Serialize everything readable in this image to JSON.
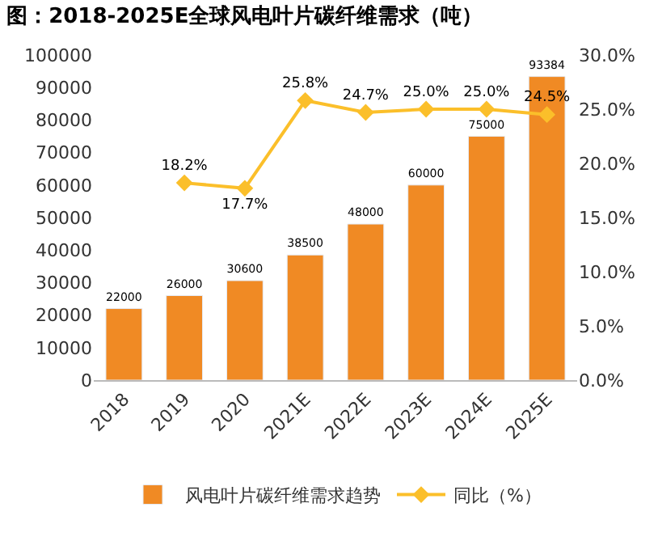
{
  "chart_data": {
    "type": "bar",
    "title": "图：2018-2025E全球风电叶片碳纤维需求（吨）",
    "categories": [
      "2018",
      "2019",
      "2020",
      "2021E",
      "2022E",
      "2023E",
      "2024E",
      "2025E"
    ],
    "series": [
      {
        "name": "风电叶片碳纤维需求趋势",
        "color": "#f08a24",
        "values": [
          22000,
          26000,
          30600,
          38500,
          48000,
          60000,
          75000,
          93384
        ],
        "value_labels": [
          "22000",
          "26000",
          "30600",
          "38500",
          "48000",
          "60000",
          "75000",
          "93384"
        ]
      },
      {
        "name": "同比（%）",
        "type": "line",
        "axis": "y2",
        "color": "#fbbf2a",
        "marker": "diamond",
        "values": [
          null,
          18.2,
          17.7,
          25.8,
          24.7,
          25.0,
          25.0,
          24.5
        ],
        "value_labels": [
          null,
          "18.2%",
          "17.7%",
          "25.8%",
          "24.7%",
          "25.0%",
          "25.0%",
          "24.5%"
        ]
      }
    ],
    "ylim": [
      0,
      100000
    ],
    "yticks": [
      0,
      10000,
      20000,
      30000,
      40000,
      50000,
      60000,
      70000,
      80000,
      90000,
      100000
    ],
    "y2lim": [
      0,
      30
    ],
    "y2ticks": [
      {
        "value": 0,
        "label": "0.0%"
      },
      {
        "value": 5,
        "label": "5.0%"
      },
      {
        "value": 10,
        "label": "10.0%"
      },
      {
        "value": 15,
        "label": "15.0%"
      },
      {
        "value": 20,
        "label": "20.0%"
      },
      {
        "value": 25,
        "label": "25.0%"
      },
      {
        "value": 30,
        "label": "30.0%"
      }
    ],
    "legend": "bottom"
  }
}
